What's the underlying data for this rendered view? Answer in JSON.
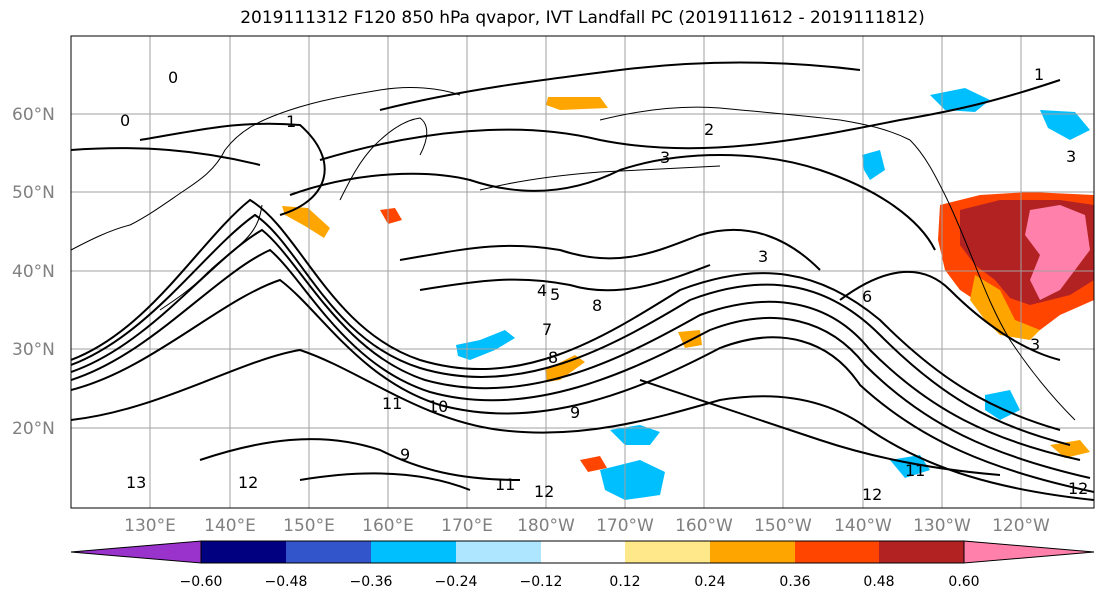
{
  "title": "2019111312 F120 850 hPa qvapor, IVT Landfall PC (2019111612 - 2019111812)",
  "map": {
    "lat_labels": [
      "60°N",
      "50°N",
      "40°N",
      "30°N",
      "20°N"
    ],
    "lon_labels": [
      "130°E",
      "140°E",
      "150°E",
      "160°E",
      "170°E",
      "180°W",
      "170°W",
      "160°W",
      "150°W",
      "140°W",
      "130°W",
      "120°W"
    ],
    "contour_labels": [
      "0",
      "0",
      "1",
      "1",
      "2",
      "3",
      "3",
      "3",
      "4",
      "5",
      "7",
      "8",
      "8",
      "9",
      "9",
      "10",
      "11",
      "11",
      "11",
      "12",
      "12",
      "12",
      "12",
      "13",
      "3",
      "6"
    ],
    "coastline_color": "#000000",
    "contour_color": "#000000",
    "grid_color": "#a0a0a0"
  },
  "colorbar": {
    "labels": [
      "−0.60",
      "−0.48",
      "−0.36",
      "−0.24",
      "−0.12",
      "0.12",
      "0.24",
      "0.36",
      "0.48",
      "0.60"
    ],
    "colors": [
      "#9933cc",
      "#000080",
      "#3355cc",
      "#00bfff",
      "#aee6ff",
      "#ffffff",
      "#ffe88a",
      "#ffa500",
      "#ff4500",
      "#b22222",
      "#ff80aa"
    ],
    "extend": "both"
  }
}
